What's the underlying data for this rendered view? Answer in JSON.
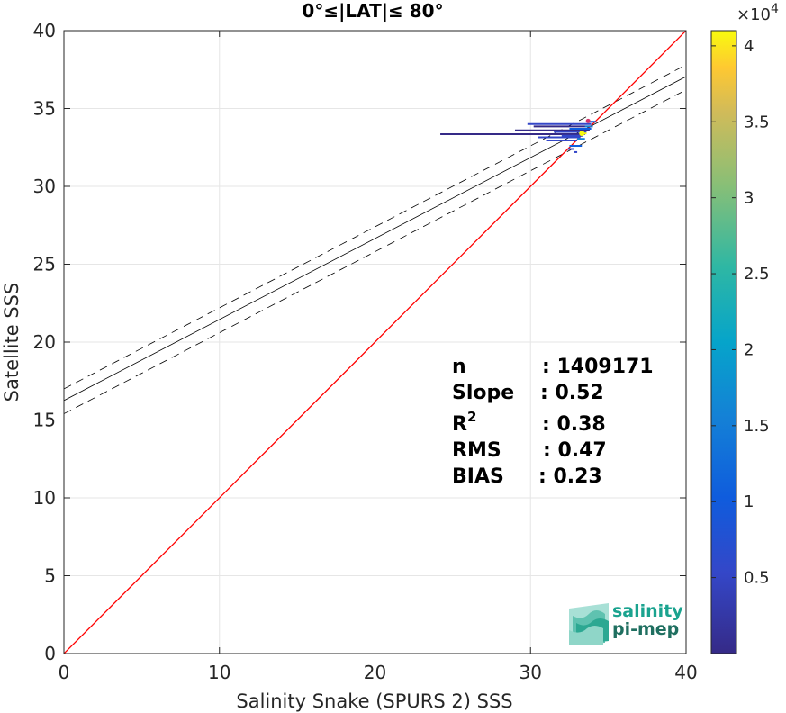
{
  "chart_data": {
    "type": "scatter",
    "title": "0°≤|LAT|≤ 80°",
    "xlabel": "Salinity Snake (SPURS 2) SSS",
    "ylabel": "Satellite SSS",
    "xlim": [
      0,
      40
    ],
    "ylim": [
      0,
      40
    ],
    "x_ticks": [
      "0",
      "10",
      "20",
      "30",
      "40"
    ],
    "y_ticks": [
      "0",
      "5",
      "10",
      "15",
      "20",
      "25",
      "30",
      "35",
      "40"
    ],
    "grid": true,
    "colorbar": {
      "range": [
        0,
        41000
      ],
      "exponent_label": "×10",
      "exponent_power": "4",
      "ticks": [
        {
          "value": 5000,
          "label": "0.5"
        },
        {
          "value": 10000,
          "label": "1"
        },
        {
          "value": 15000,
          "label": "1.5"
        },
        {
          "value": 20000,
          "label": "2"
        },
        {
          "value": 25000,
          "label": "2.5"
        },
        {
          "value": 30000,
          "label": "3"
        },
        {
          "value": 35000,
          "label": "3.5"
        },
        {
          "value": 40000,
          "label": "4"
        }
      ],
      "colormap": "parula"
    },
    "lines": {
      "one_to_one": {
        "slope": 1,
        "intercept": 0,
        "color": "#ff0000"
      },
      "fit": {
        "slope": 0.52,
        "intercept": 16.25,
        "color": "#000000"
      },
      "fit_upper": {
        "slope": 0.52,
        "intercept": 17.0,
        "color": "#000000",
        "style": "dashed"
      },
      "fit_lower": {
        "slope": 0.52,
        "intercept": 15.4,
        "color": "#000000",
        "style": "dashed"
      }
    },
    "density_points": [
      {
        "x": 24.2,
        "y": 33.35,
        "x2": 33.5,
        "count": 800
      },
      {
        "x": 29.0,
        "y": 33.6,
        "x2": 33.8,
        "count": 1500
      },
      {
        "x": 29.8,
        "y": 34.0,
        "x2": 33.9,
        "count": 2500
      },
      {
        "x": 30.2,
        "y": 33.85,
        "x2": 34.0,
        "count": 2000
      },
      {
        "x": 30.5,
        "y": 33.15,
        "x2": 33.2,
        "count": 3000
      },
      {
        "x": 31.0,
        "y": 32.95,
        "x2": 33.0,
        "count": 3500
      },
      {
        "x": 31.5,
        "y": 33.5,
        "x2": 33.6,
        "count": 4000
      },
      {
        "x": 32.0,
        "y": 33.25,
        "x2": 33.4,
        "count": 6000
      },
      {
        "x": 32.5,
        "y": 33.7,
        "x2": 33.9,
        "count": 8000
      },
      {
        "x": 32.5,
        "y": 32.6,
        "x2": 33.3,
        "count": 7000
      },
      {
        "x": 33.0,
        "y": 33.05,
        "x2": 33.5,
        "count": 12000
      },
      {
        "x": 33.2,
        "y": 33.4,
        "x2": 33.6,
        "count": 41000
      },
      {
        "x": 33.5,
        "y": 33.85,
        "x2": 34.0,
        "count": 15000
      },
      {
        "x": 33.7,
        "y": 34.15,
        "x2": 34.2,
        "count": 9000
      },
      {
        "x": 32.4,
        "y": 32.4,
        "x2": 32.8,
        "count": 5000
      },
      {
        "x": 32.8,
        "y": 32.2,
        "x2": 33.0,
        "count": 4000
      }
    ]
  },
  "stats": {
    "n_label": "n",
    "n_value": ": 1409171",
    "slope_label": "Slope",
    "slope_value": ": 0.52",
    "r2_label": "R",
    "r2_sup": "2",
    "r2_value": ": 0.38",
    "rms_label": "RMS",
    "rms_value": ": 0.47",
    "bias_label": "BIAS",
    "bias_value": ": 0.23"
  },
  "logo": {
    "line1": "salinity",
    "line2": "pi-mep",
    "color1": "#1aa38f",
    "color2": "#1f6f60"
  },
  "colors": {
    "grid": "#e6e6e6",
    "axis": "#262626"
  }
}
